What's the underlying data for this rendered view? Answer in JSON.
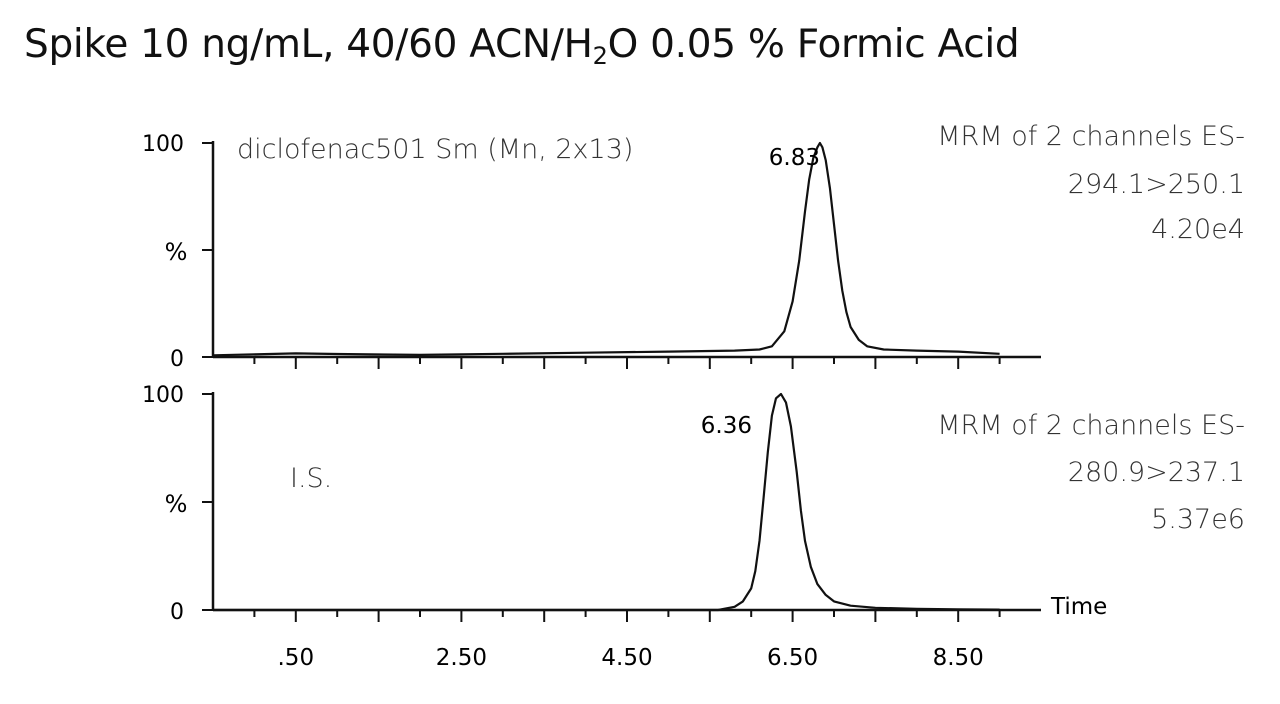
{
  "title": {
    "prefix": "Spike 10 ng/mL, 40/60 ACN/H",
    "subscript": "2",
    "suffix": "O  0.05 % Formic Acid"
  },
  "chart_data": [
    {
      "type": "line",
      "sample_label": "diclofenac501 Sm (Mn, 2x13)",
      "header": [
        "MRM of 2 channels ES-",
        "294.1>250.1",
        "4.20e4"
      ],
      "ylabel": "%",
      "ylim": [
        0,
        100
      ],
      "yticks": [
        "0",
        "100"
      ],
      "peak_label": "6.83",
      "series": [
        {
          "x": [
            -0.5,
            0.5,
            1.0,
            2.0,
            3.0,
            4.0,
            5.0,
            5.8,
            6.1,
            6.25,
            6.4,
            6.5,
            6.58,
            6.65,
            6.7,
            6.75,
            6.8,
            6.83,
            6.86,
            6.9,
            6.95,
            7.0,
            7.05,
            7.1,
            7.15,
            7.2,
            7.3,
            7.4,
            7.6,
            8.0,
            8.5,
            9.0
          ],
          "y": [
            0.8,
            1.7,
            1.4,
            1.0,
            1.5,
            2.0,
            2.5,
            3.0,
            3.5,
            5,
            12,
            26,
            45,
            68,
            83,
            93,
            98,
            100,
            98,
            92,
            79,
            62,
            45,
            31,
            21,
            14,
            8,
            5,
            3.5,
            3,
            2.5,
            1.5
          ]
        }
      ]
    },
    {
      "type": "line",
      "sample_label": "I.S.",
      "header": [
        "MRM of 2 channels ES-",
        "280.9>237.1",
        "5.37e6"
      ],
      "ylabel": "%",
      "ylim": [
        0,
        100
      ],
      "yticks": [
        "0",
        "100"
      ],
      "peak_label": "6.36",
      "xlabel": "Time",
      "xticks": [
        ".50",
        "2.50",
        "4.50",
        "6.50",
        "8.50"
      ],
      "xlim": [
        -0.5,
        9.5
      ],
      "series": [
        {
          "x": [
            -0.5,
            5.0,
            5.6,
            5.8,
            5.9,
            6.0,
            6.05,
            6.1,
            6.15,
            6.2,
            6.25,
            6.3,
            6.36,
            6.42,
            6.48,
            6.55,
            6.6,
            6.65,
            6.72,
            6.8,
            6.9,
            7.0,
            7.2,
            7.5,
            8.0,
            8.5,
            9.0
          ],
          "y": [
            0,
            0,
            0,
            1.5,
            4,
            10,
            18,
            32,
            52,
            73,
            90,
            98,
            100,
            96,
            85,
            64,
            46,
            32,
            20,
            12,
            7,
            4,
            2,
            1,
            0.5,
            0.3,
            0.2
          ]
        }
      ]
    }
  ]
}
